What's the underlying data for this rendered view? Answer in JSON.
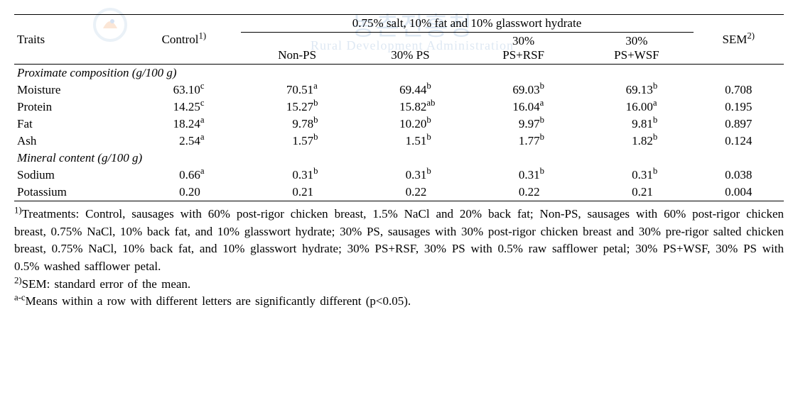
{
  "header": {
    "traits": "Traits",
    "control": "Control",
    "control_sup": "1)",
    "group_header": "0.75% salt, 10% fat and 10% glasswort hydrate",
    "cols": [
      "Non-PS",
      "30% PS",
      "30%\nPS+RSF",
      "30%\nPS+WSF"
    ],
    "sem": "SEM",
    "sem_sup": "2)"
  },
  "sections": [
    {
      "title": "Proximate composition (g/100 g)",
      "rows": [
        {
          "trait": "Moisture",
          "vals": [
            {
              "v": "63.10",
              "s": "c"
            },
            {
              "v": "70.51",
              "s": "a"
            },
            {
              "v": "69.44",
              "s": "b"
            },
            {
              "v": "69.03",
              "s": "b"
            },
            {
              "v": "69.13",
              "s": "b"
            }
          ],
          "sem": "0.708"
        },
        {
          "trait": "Protein",
          "vals": [
            {
              "v": "14.25",
              "s": "c"
            },
            {
              "v": "15.27",
              "s": "b"
            },
            {
              "v": "15.82",
              "s": "ab"
            },
            {
              "v": "16.04",
              "s": "a"
            },
            {
              "v": "16.00",
              "s": "a"
            }
          ],
          "sem": "0.195"
        },
        {
          "trait": "Fat",
          "vals": [
            {
              "v": "18.24",
              "s": "a"
            },
            {
              "v": "9.78",
              "s": "b"
            },
            {
              "v": "10.20",
              "s": "b"
            },
            {
              "v": "9.97",
              "s": "b"
            },
            {
              "v": "9.81",
              "s": "b"
            }
          ],
          "sem": "0.897"
        },
        {
          "trait": "Ash",
          "vals": [
            {
              "v": "2.54",
              "s": "a"
            },
            {
              "v": "1.57",
              "s": "b"
            },
            {
              "v": "1.51",
              "s": "b"
            },
            {
              "v": "1.77",
              "s": "b"
            },
            {
              "v": "1.82",
              "s": "b"
            }
          ],
          "sem": "0.124"
        }
      ]
    },
    {
      "title": "Mineral content (g/100 g)",
      "rows": [
        {
          "trait": "Sodium",
          "vals": [
            {
              "v": "0.66",
              "s": "a"
            },
            {
              "v": "0.31",
              "s": "b"
            },
            {
              "v": "0.31",
              "s": "b"
            },
            {
              "v": "0.31",
              "s": "b"
            },
            {
              "v": "0.31",
              "s": "b"
            }
          ],
          "sem": "0.038"
        },
        {
          "trait": "Potassium",
          "vals": [
            {
              "v": "0.20",
              "s": ""
            },
            {
              "v": "0.21",
              "s": ""
            },
            {
              "v": "0.22",
              "s": ""
            },
            {
              "v": "0.22",
              "s": ""
            },
            {
              "v": "0.21",
              "s": ""
            }
          ],
          "sem": "0.004"
        }
      ]
    }
  ],
  "footnotes": [
    {
      "sup": "1)",
      "text": "Treatments: Control, sausages with 60% post-rigor chicken breast, 1.5% NaCl and 20% back fat; Non-PS, sausages with 60% post-rigor chicken breast, 0.75% NaCl, 10% back fat, and 10% glasswort hydrate; 30% PS, sausages with 30% post-rigor chicken breast and 30% pre-rigor salted chicken breast, 0.75% NaCl, 10% back fat, and 10% glasswort hydrate; 30% PS+RSF, 30% PS with 0.5% raw safflower petal; 30% PS+WSF, 30% PS with 0.5% washed safflower petal."
    },
    {
      "sup": "2)",
      "text": "SEM: standard error of the mean."
    },
    {
      "sup": "a-c",
      "text": "Means within a row with different letters are significantly different (p<0.05)."
    }
  ],
  "watermark": {
    "main": "농촌진흥청",
    "sub": "Rural Development Administration"
  }
}
